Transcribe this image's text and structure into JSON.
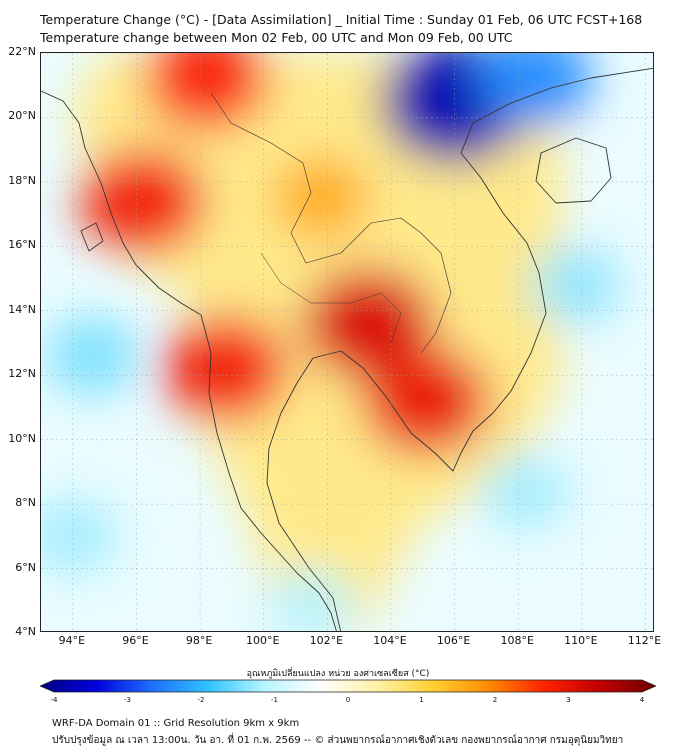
{
  "header": {
    "title_line1": "Temperature Change (°C) - [Data Assimilation] _ Initial Time : Sunday 01 Feb, 06 UTC FCST+168",
    "title_line2": "Temperature change between Mon 02 Feb, 00 UTC and Mon 09 Feb, 00 UTC"
  },
  "map": {
    "lat_labels": [
      "22°N",
      "20°N",
      "18°N",
      "16°N",
      "14°N",
      "12°N",
      "10°N",
      "8°N",
      "6°N",
      "4°N"
    ],
    "lon_labels": [
      "94°E",
      "96°E",
      "98°E",
      "100°E",
      "102°E",
      "104°E",
      "106°E",
      "108°E",
      "110°E",
      "112°E"
    ],
    "lat_range": [
      4,
      22
    ],
    "lon_range": [
      93,
      112.3
    ],
    "anomalies": [
      {
        "name": "north-myanmar-warm",
        "lon": 98.2,
        "lat": 21.2,
        "value": 2.6
      },
      {
        "name": "west-myanmar-warm",
        "lon": 96.2,
        "lat": 17.4,
        "value": 2.7
      },
      {
        "name": "north-laos-warm",
        "lon": 101.8,
        "lat": 17.5,
        "value": 1.5
      },
      {
        "name": "cambodia-warm-center",
        "lon": 103.3,
        "lat": 13.6,
        "value": 3.0
      },
      {
        "name": "south-vietnam-warm",
        "lon": 105.1,
        "lat": 11.2,
        "value": 2.8
      },
      {
        "name": "tenasserim-warm",
        "lon": 98.8,
        "lat": 12.2,
        "value": 2.7
      },
      {
        "name": "northern-vietnam-cold",
        "lon": 106.0,
        "lat": 20.5,
        "value": -3.6
      },
      {
        "name": "gulf-tonkin-cold",
        "lon": 108.5,
        "lat": 21.2,
        "value": -2.3
      },
      {
        "name": "andaman-cold",
        "lon": 94.6,
        "lat": 12.6,
        "value": -1.4
      },
      {
        "name": "south-china-sea-cold",
        "lon": 109.8,
        "lat": 14.8,
        "value": -1.3
      },
      {
        "name": "south-china-sea-cold-2",
        "lon": 108.2,
        "lat": 8.4,
        "value": -1.2
      },
      {
        "name": "malaysia-cold",
        "lon": 101.5,
        "lat": 4.9,
        "value": -1.1
      },
      {
        "name": "bay-of-bengal-cold",
        "lon": 94.0,
        "lat": 7.0,
        "value": -1.2
      }
    ]
  },
  "colorbar": {
    "title": "อุณหภูมิเปลี่ยนแปลง หน่วย องศาเซลเซียส (°C)",
    "ticks": [
      "-4",
      "-3",
      "-2",
      "-1",
      "0",
      "1",
      "2",
      "3",
      "4"
    ],
    "range": [
      -4,
      4
    ],
    "colors": [
      "#000080",
      "#0000dd",
      "#1f6fff",
      "#2fc4ff",
      "#b7f4ff",
      "#ffffff",
      "#fff2a8",
      "#ffd233",
      "#ff8c00",
      "#ff2200",
      "#c00000",
      "#6e0000"
    ]
  },
  "footer": {
    "line1": "WRF-DA Domain 01 :: Grid Resolution 9km x 9km",
    "line2": "ปรับปรุงข้อมูล ณ เวลา 13:00น. วัน อา. ที่ 01 ก.พ. 2569 -- © ส่วนพยากรณ์อากาศเชิงตัวเลข กองพยากรณ์อากาศ กรมอุตุนิยมวิทยา"
  }
}
